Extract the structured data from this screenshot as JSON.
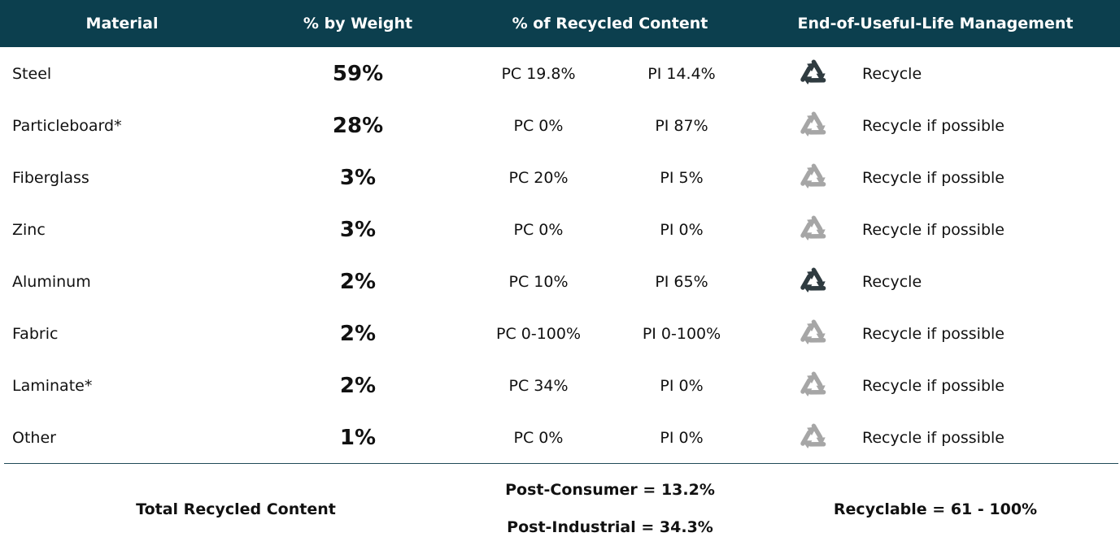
{
  "table": {
    "header": [
      "Material",
      "% by Weight",
      "% of Recycled Content",
      "End-of-Useful-Life Management"
    ],
    "rows": [
      {
        "material": "Steel",
        "weight": "59%",
        "pc": "PC 19.8%",
        "pi": "PI 14.4%",
        "icon_color": "#2f3b40",
        "management": "Recycle"
      },
      {
        "material": "Particleboard*",
        "weight": "28%",
        "pc": "PC 0%",
        "pi": "PI 87%",
        "icon_color": "#a6a6a6",
        "management": "Recycle if possible"
      },
      {
        "material": "Fiberglass",
        "weight": "3%",
        "pc": "PC 20%",
        "pi": "PI 5%",
        "icon_color": "#a6a6a6",
        "management": "Recycle if possible"
      },
      {
        "material": "Zinc",
        "weight": "3%",
        "pc": "PC 0%",
        "pi": "PI 0%",
        "icon_color": "#a6a6a6",
        "management": "Recycle if possible"
      },
      {
        "material": "Aluminum",
        "weight": "2%",
        "pc": "PC 10%",
        "pi": "PI 65%",
        "icon_color": "#2f3b40",
        "management": "Recycle"
      },
      {
        "material": "Fabric",
        "weight": "2%",
        "pc": "PC 0-100%",
        "pi": "PI 0-100%",
        "icon_color": "#a6a6a6",
        "management": "Recycle if possible"
      },
      {
        "material": "Laminate*",
        "weight": "2%",
        "pc": "PC 34%",
        "pi": "PI 0%",
        "icon_color": "#a6a6a6",
        "management": "Recycle if possible"
      },
      {
        "material": "Other",
        "weight": "1%",
        "pc": "PC 0%",
        "pi": "PI 0%",
        "icon_color": "#a6a6a6",
        "management": "Recycle if possible"
      }
    ],
    "footer": {
      "label": "Total Recycled Content",
      "post_consumer": "Post-Consumer = 13.2%",
      "post_industrial": "Post-Industrial = 34.3%",
      "recyclable": "Recyclable = 61 - 100%"
    }
  }
}
